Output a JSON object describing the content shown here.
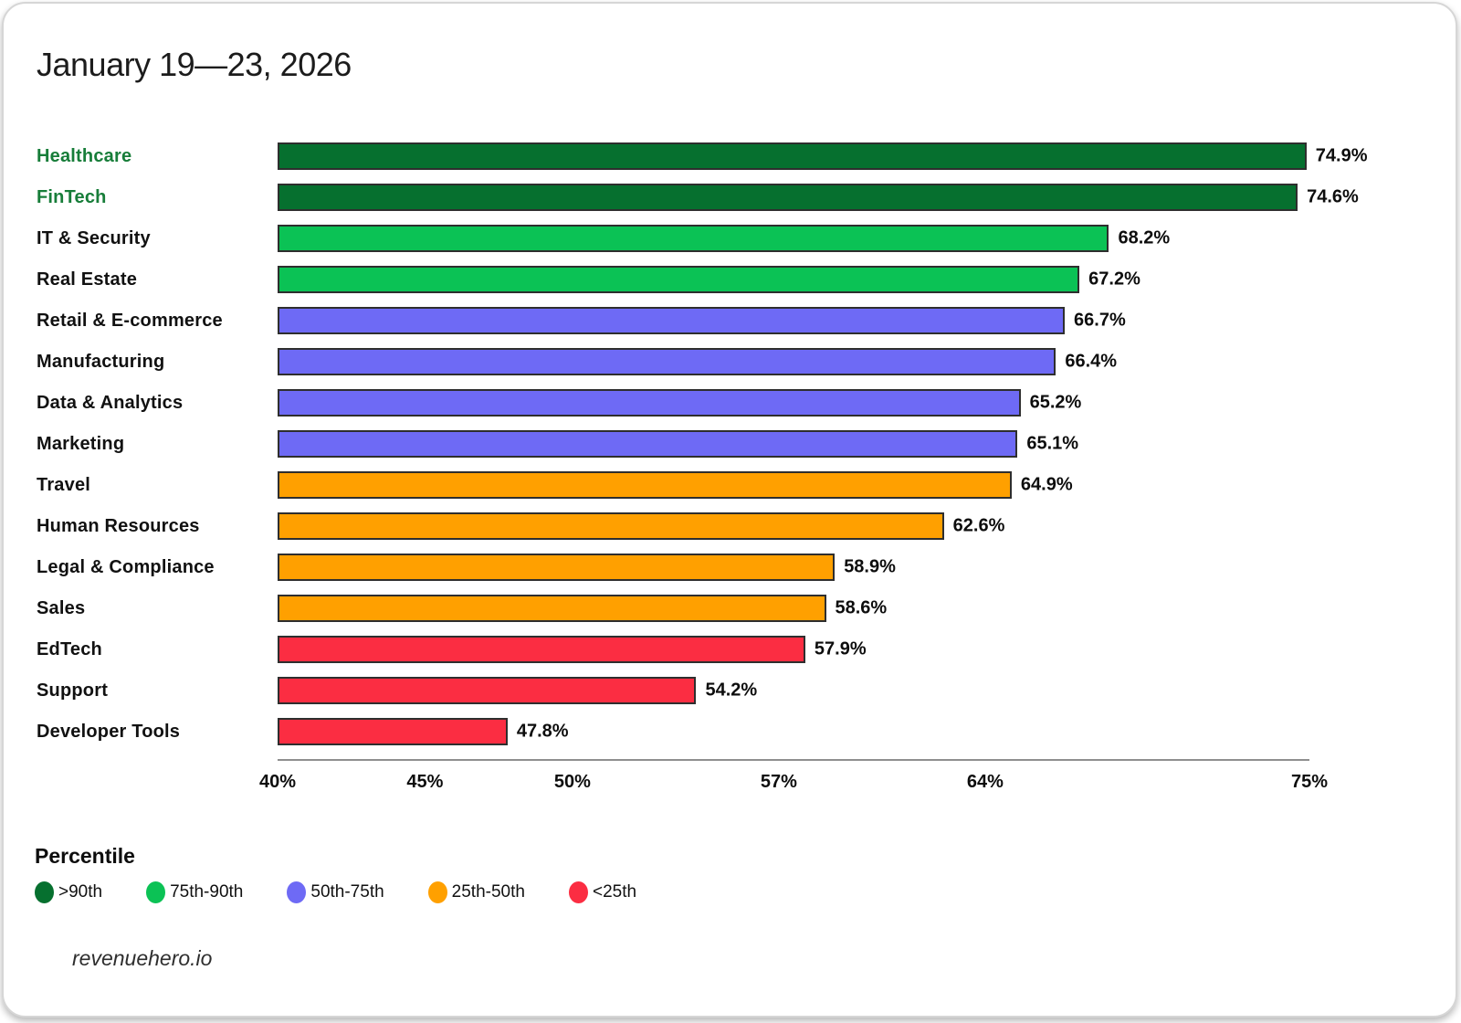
{
  "title": "January 19—23, 2026",
  "footer": "revenuehero.io",
  "legend": {
    "title": "Percentile"
  },
  "colors": {
    "bar_border": "#2e2e2e",
    "axis": "#8f8f8f",
    "highlight_label": "#177d39",
    "text": "#111111"
  },
  "chart_data": {
    "type": "bar",
    "orientation": "horizontal",
    "xlim": [
      40,
      75
    ],
    "grid": false,
    "legend_position": "bottom",
    "ticks": [
      {
        "value": 40,
        "label": "40%"
      },
      {
        "value": 45,
        "label": "45%"
      },
      {
        "value": 50,
        "label": "50%"
      },
      {
        "value": 57,
        "label": "57%"
      },
      {
        "value": 64,
        "label": "64%"
      },
      {
        "value": 75,
        "label": "75%"
      }
    ],
    "bands": [
      {
        "name": ">90th",
        "color": "#06702f",
        "label_color": "#177d39"
      },
      {
        "name": "75th-90th",
        "color": "#0bc255"
      },
      {
        "name": "50th-75th",
        "color": "#6e6af5"
      },
      {
        "name": "25th-50th",
        "color": "#ffa000"
      },
      {
        "name": "<25th",
        "color": "#fb2d42"
      }
    ],
    "rows": [
      {
        "label": "Healthcare",
        "value": 74.9,
        "display": "74.9%",
        "band": 0
      },
      {
        "label": "FinTech",
        "value": 74.6,
        "display": "74.6%",
        "band": 0
      },
      {
        "label": "IT & Security",
        "value": 68.2,
        "display": "68.2%",
        "band": 1
      },
      {
        "label": "Real Estate",
        "value": 67.2,
        "display": "67.2%",
        "band": 1
      },
      {
        "label": "Retail & E-commerce",
        "value": 66.7,
        "display": "66.7%",
        "band": 2
      },
      {
        "label": "Manufacturing",
        "value": 66.4,
        "display": "66.4%",
        "band": 2
      },
      {
        "label": "Data & Analytics",
        "value": 65.2,
        "display": "65.2%",
        "band": 2
      },
      {
        "label": "Marketing",
        "value": 65.1,
        "display": "65.1%",
        "band": 2
      },
      {
        "label": "Travel",
        "value": 64.9,
        "display": "64.9%",
        "band": 3
      },
      {
        "label": "Human Resources",
        "value": 62.6,
        "display": "62.6%",
        "band": 3
      },
      {
        "label": "Legal & Compliance",
        "value": 58.9,
        "display": "58.9%",
        "band": 3
      },
      {
        "label": "Sales",
        "value": 58.6,
        "display": "58.6%",
        "band": 3
      },
      {
        "label": "EdTech",
        "value": 57.9,
        "display": "57.9%",
        "band": 4
      },
      {
        "label": "Support",
        "value": 54.2,
        "display": "54.2%",
        "band": 4
      },
      {
        "label": "Developer Tools",
        "value": 47.8,
        "display": "47.8%",
        "band": 4
      }
    ]
  }
}
